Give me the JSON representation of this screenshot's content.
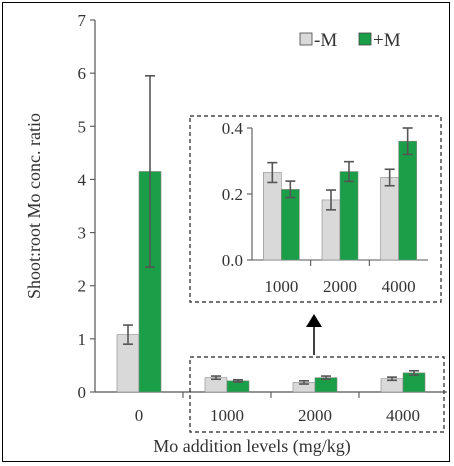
{
  "chart_data": [
    {
      "type": "bar",
      "ylabel": "Shoot:root Mo conc. ratio",
      "xlabel": "Mo addition levels (mg/kg)",
      "categories": [
        "0",
        "1000",
        "2000",
        "4000"
      ],
      "ylim": [
        0,
        7
      ],
      "yticks": [
        "0",
        "1",
        "2",
        "3",
        "4",
        "5",
        "6",
        "7"
      ],
      "legend_position": "top-right",
      "series": [
        {
          "name": "-M",
          "color": "#d9d9d9",
          "values": [
            1.08,
            0.27,
            0.18,
            0.25
          ],
          "errors": [
            0.18,
            0.03,
            0.03,
            0.03
          ]
        },
        {
          "name": "+M",
          "color": "#1a9e47",
          "values": [
            4.15,
            0.21,
            0.27,
            0.36
          ],
          "errors": [
            1.8,
            0.02,
            0.03,
            0.04
          ]
        }
      ],
      "grid": false
    },
    {
      "type": "bar",
      "categories": [
        "1000",
        "2000",
        "4000"
      ],
      "ylim": [
        0,
        0.4
      ],
      "yticks": [
        "0.0",
        "0.2",
        "0.4"
      ],
      "series": [
        {
          "name": "-M",
          "color": "#d9d9d9",
          "values": [
            0.265,
            0.182,
            0.25
          ],
          "errors": [
            0.03,
            0.03,
            0.025
          ]
        },
        {
          "name": "+M",
          "color": "#1a9e47",
          "values": [
            0.214,
            0.268,
            0.36
          ],
          "errors": [
            0.025,
            0.03,
            0.04
          ]
        }
      ],
      "grid": false
    }
  ]
}
